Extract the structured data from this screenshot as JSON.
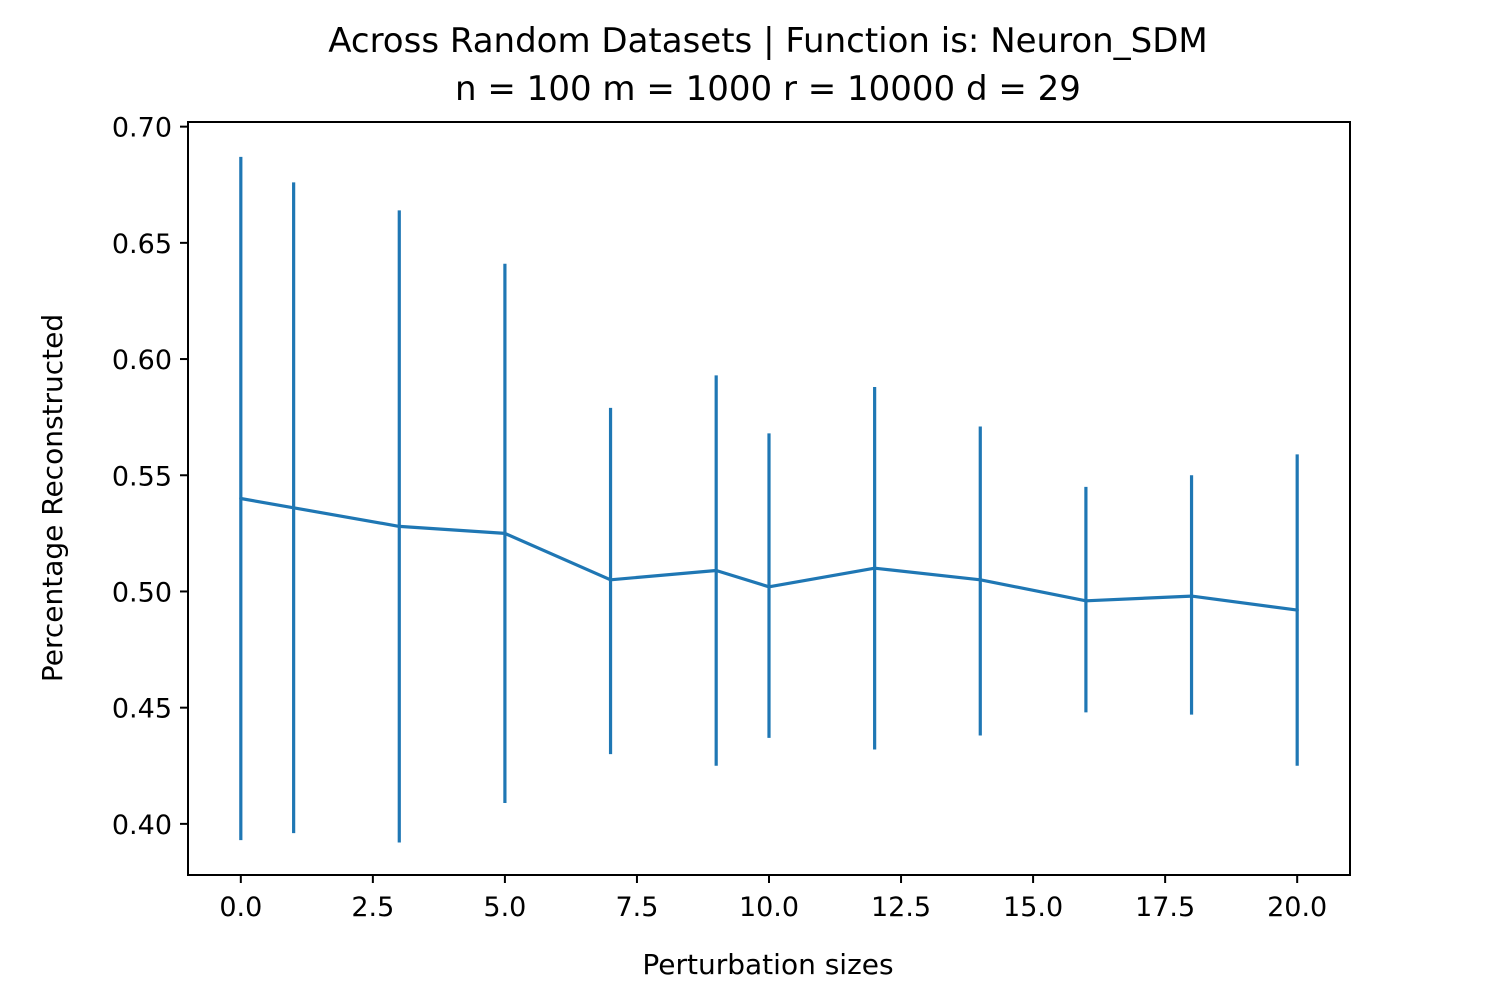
{
  "chart_data": {
    "type": "line",
    "title": "Across Random Datasets | Function is: Neuron_SDM",
    "subtitle": "n = 100 m = 1000 r = 10000 d = 29",
    "xlabel": "Perturbation sizes",
    "ylabel": "Percentage Reconstructed",
    "xlim": [
      -1.0,
      21.0
    ],
    "ylim": [
      0.378,
      0.702
    ],
    "x_ticks": [
      "0.0",
      "2.5",
      "5.0",
      "7.5",
      "10.0",
      "12.5",
      "15.0",
      "17.5",
      "20.0"
    ],
    "y_ticks": [
      "0.40",
      "0.45",
      "0.50",
      "0.55",
      "0.60",
      "0.65",
      "0.70"
    ],
    "grid": false,
    "color": "#1f77b4",
    "series": [
      {
        "x": [
          0,
          1,
          3,
          5,
          7,
          9,
          10,
          12,
          14,
          16,
          18,
          20
        ],
        "y": [
          0.54,
          0.536,
          0.528,
          0.525,
          0.505,
          0.509,
          0.502,
          0.51,
          0.505,
          0.496,
          0.498,
          0.492
        ],
        "yerr_low": [
          0.393,
          0.396,
          0.392,
          0.409,
          0.43,
          0.425,
          0.437,
          0.432,
          0.438,
          0.448,
          0.447,
          0.425
        ],
        "yerr_high": [
          0.687,
          0.676,
          0.664,
          0.641,
          0.579,
          0.593,
          0.568,
          0.588,
          0.571,
          0.545,
          0.55,
          0.559
        ]
      }
    ]
  }
}
